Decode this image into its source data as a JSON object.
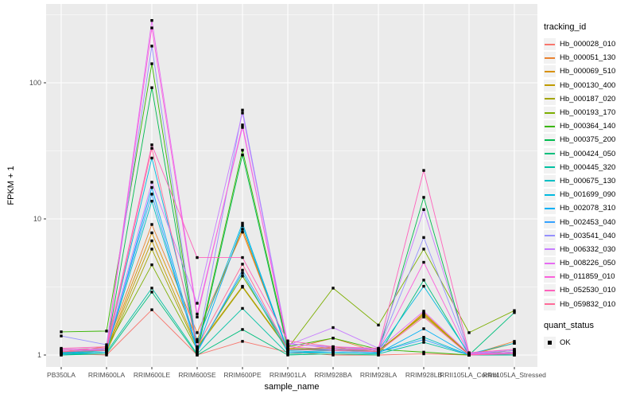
{
  "figure": {
    "panel_background": "#EBEBEB",
    "grid_color": "#FFFFFF",
    "point_color": "#000000",
    "axis_text_color": "#4D4D4D",
    "tick_color": "#333333",
    "legend_key_background": "#F2F2F2"
  },
  "legend": {
    "tracking_title": "tracking_id",
    "quant_title": "quant_status",
    "quant_items": [
      {
        "label": "OK",
        "marker": "black-square"
      }
    ]
  },
  "chart_data": {
    "type": "line",
    "scale_y": "log10",
    "title": "",
    "xlabel": "sample_name",
    "ylabel": "FPKM + 1",
    "ylim": [
      0.82,
      380
    ],
    "y_ticks": [
      1,
      10,
      100
    ],
    "y_minor_ticks": [
      3.162,
      31.62,
      316.2
    ],
    "grid": true,
    "legend_position": "right",
    "categories": [
      "PB350LA",
      "RRIM600LA",
      "RRIM600LE",
      "RRIM600SE",
      "RRIM600PE",
      "RRIM901LA",
      "RRIM928BA",
      "RRIM928LA",
      "RRIM928LB",
      "RRII105LA_Control",
      "RRII105LA_Stressed"
    ],
    "series": [
      {
        "name": "Hb_000028_010",
        "color": "#F8766D",
        "values": [
          1.02,
          1.0,
          2.15,
          1.0,
          1.26,
          1.05,
          1.0,
          1.0,
          1.02,
          1.0,
          1.0
        ]
      },
      {
        "name": "Hb_000051_130",
        "color": "#EA8331",
        "values": [
          1.05,
          1.15,
          9.1,
          1.46,
          8.0,
          1.1,
          1.33,
          1.05,
          2.0,
          1.0,
          1.26
        ]
      },
      {
        "name": "Hb_000069_510",
        "color": "#D89000",
        "values": [
          1.03,
          1.1,
          7.9,
          1.3,
          8.4,
          1.08,
          1.15,
          1.04,
          2.05,
          1.0,
          1.22
        ]
      },
      {
        "name": "Hb_000130_400",
        "color": "#C09B00",
        "values": [
          1.04,
          1.08,
          6.9,
          1.15,
          3.2,
          1.12,
          1.1,
          1.06,
          2.0,
          1.02,
          1.05
        ]
      },
      {
        "name": "Hb_000187_020",
        "color": "#A3A500",
        "values": [
          1.02,
          1.05,
          6.0,
          1.12,
          3.15,
          1.1,
          1.12,
          1.08,
          1.95,
          1.01,
          1.08
        ]
      },
      {
        "name": "Hb_000193_170",
        "color": "#7CAE00",
        "values": [
          1.1,
          1.12,
          4.6,
          1.1,
          3.8,
          1.12,
          3.1,
          1.66,
          6.0,
          1.46,
          2.12
        ]
      },
      {
        "name": "Hb_000364_140",
        "color": "#39B600",
        "values": [
          1.48,
          1.5,
          138,
          1.1,
          32,
          1.15,
          1.33,
          1.1,
          1.05,
          1.0,
          1.0
        ]
      },
      {
        "name": "Hb_000375_200",
        "color": "#00BB4E",
        "values": [
          1.05,
          1.1,
          92,
          1.05,
          29.5,
          1.1,
          1.1,
          1.05,
          14.4,
          1.0,
          1.02
        ]
      },
      {
        "name": "Hb_000424_050",
        "color": "#00BF7D",
        "values": [
          1.0,
          1.02,
          2.9,
          1.0,
          1.54,
          1.0,
          1.02,
          1.0,
          3.55,
          1.0,
          2.05
        ]
      },
      {
        "name": "Hb_000445_320",
        "color": "#00C1A3",
        "values": [
          1.0,
          1.05,
          3.1,
          1.02,
          2.2,
          1.02,
          1.05,
          1.02,
          1.24,
          1.0,
          1.0
        ]
      },
      {
        "name": "Hb_000675_130",
        "color": "#00BFC4",
        "values": [
          1.02,
          1.08,
          13.5,
          1.08,
          4.0,
          1.05,
          1.08,
          1.05,
          1.35,
          1.0,
          1.05
        ]
      },
      {
        "name": "Hb_001699_090",
        "color": "#00BAE0",
        "values": [
          1.03,
          1.1,
          28,
          1.25,
          9.3,
          1.08,
          1.1,
          1.08,
          3.2,
          1.02,
          1.22
        ]
      },
      {
        "name": "Hb_002078_310",
        "color": "#00B0F6",
        "values": [
          1.02,
          1.05,
          17,
          1.1,
          8.9,
          1.05,
          1.05,
          1.03,
          1.56,
          1.0,
          1.02
        ]
      },
      {
        "name": "Hb_002453_040",
        "color": "#35A2FF",
        "values": [
          1.05,
          1.1,
          15.2,
          1.05,
          4.2,
          1.1,
          1.08,
          1.05,
          1.3,
          1.0,
          1.05
        ]
      },
      {
        "name": "Hb_003541_040",
        "color": "#9590FF",
        "values": [
          1.38,
          1.19,
          186,
          1.12,
          63,
          1.2,
          1.15,
          1.1,
          7.3,
          1.02,
          1.08
        ]
      },
      {
        "name": "Hb_006332_030",
        "color": "#C77CFF",
        "values": [
          1.08,
          1.1,
          18.6,
          2.4,
          60,
          1.18,
          1.59,
          1.12,
          11.7,
          1.03,
          1.1
        ]
      },
      {
        "name": "Hb_008226_050",
        "color": "#E76BF3",
        "values": [
          1.1,
          1.12,
          287,
          2.0,
          47,
          1.22,
          1.12,
          1.1,
          2.1,
          1.02,
          1.05
        ]
      },
      {
        "name": "Hb_011859_010",
        "color": "#FA62DB",
        "values": [
          1.08,
          1.1,
          253,
          1.9,
          49,
          1.15,
          1.1,
          1.08,
          4.8,
          1.01,
          1.03
        ]
      },
      {
        "name": "Hb_052530_010",
        "color": "#FF62BC",
        "values": [
          1.12,
          1.15,
          35,
          5.2,
          5.2,
          1.27,
          1.15,
          1.12,
          22.7,
          1.04,
          1.1
        ]
      },
      {
        "name": "Hb_059832_010",
        "color": "#FF6A98",
        "values": [
          1.06,
          1.08,
          33,
          1.15,
          4.65,
          1.1,
          1.08,
          1.06,
          1.9,
          1.0,
          1.02
        ]
      }
    ]
  }
}
